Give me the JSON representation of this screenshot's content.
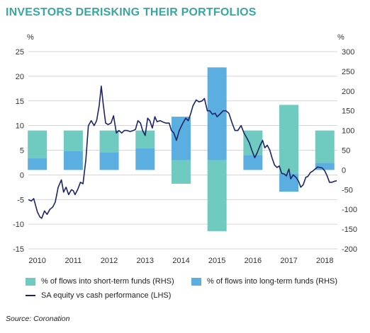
{
  "title": "INVESTORS DERISKING THEIR PORTFOLIOS",
  "source": "Source: Coronation",
  "colors": {
    "title": "#3aa6a0",
    "short": "#6fcbbf",
    "long": "#5aafe0",
    "line": "#1b2466"
  },
  "chart_data": {
    "type": "bar+line",
    "title": "INVESTORS DERISKING THEIR PORTFOLIOS",
    "left_axis": {
      "unit": "%",
      "ylim": [
        -15,
        25
      ],
      "ticks": [
        25,
        20,
        15,
        10,
        5,
        0,
        -5,
        -10,
        -15
      ]
    },
    "right_axis": {
      "unit": "%",
      "ylim": [
        -200,
        300
      ],
      "ticks": [
        300,
        250,
        200,
        150,
        100,
        50,
        0,
        -50,
        -100,
        -150,
        -200
      ]
    },
    "x_ticks": [
      "2010",
      "2011",
      "2012",
      "2013",
      "2014",
      "2015",
      "2016",
      "2017",
      "2018"
    ],
    "grid": "horizontal",
    "series": [
      {
        "name": "% of flows into short-term funds (RHS)",
        "axis": "right",
        "kind": "bar",
        "values": [
          {
            "year": 2010,
            "value": 100,
            "base": 30
          },
          {
            "year": 2011,
            "value": 100,
            "base": 48
          },
          {
            "year": 2012,
            "value": 100,
            "base": 45
          },
          {
            "year": 2013,
            "value": 100,
            "base": 55
          },
          {
            "year": 2014,
            "value": -35,
            "base": 25
          },
          {
            "year": 2015,
            "value": -155,
            "base": 25
          },
          {
            "year": 2016,
            "value": 100,
            "base": 38
          },
          {
            "year": 2017,
            "value": 165,
            "base": -10
          },
          {
            "year": 2018,
            "value": 100,
            "base": 18
          }
        ]
      },
      {
        "name": "% of flows into long-term funds (RHS)",
        "axis": "right",
        "kind": "bar",
        "values": [
          {
            "year": 2010,
            "value": 0,
            "base": 30
          },
          {
            "year": 2011,
            "value": 0,
            "base": 48
          },
          {
            "year": 2012,
            "value": 0,
            "base": 45
          },
          {
            "year": 2013,
            "value": 0,
            "base": 55
          },
          {
            "year": 2014,
            "value": 135,
            "base": 25
          },
          {
            "year": 2015,
            "value": 260,
            "base": 25
          },
          {
            "year": 2016,
            "value": 0,
            "base": 38
          },
          {
            "year": 2017,
            "value": -55,
            "base": -10
          },
          {
            "year": 2018,
            "value": 0,
            "base": 18
          }
        ]
      },
      {
        "name": "SA equity vs cash performance (LHS)",
        "axis": "left",
        "kind": "line",
        "points": [
          [
            2009.75,
            -5
          ],
          [
            2009.83,
            -5.3
          ],
          [
            2009.9,
            -4.8
          ],
          [
            2010.0,
            -7.5
          ],
          [
            2010.07,
            -8.5
          ],
          [
            2010.12,
            -8.8
          ],
          [
            2010.2,
            -7.3
          ],
          [
            2010.27,
            -8
          ],
          [
            2010.35,
            -7
          ],
          [
            2010.43,
            -6.5
          ],
          [
            2010.5,
            -5.5
          ],
          [
            2010.58,
            -2.5
          ],
          [
            2010.67,
            -1
          ],
          [
            2010.73,
            -3.5
          ],
          [
            2010.8,
            -2.5
          ],
          [
            2010.87,
            -4
          ],
          [
            2010.95,
            -3
          ],
          [
            2011.0,
            -3.2
          ],
          [
            2011.05,
            -4
          ],
          [
            2011.12,
            -3
          ],
          [
            2011.2,
            -1.5
          ],
          [
            2011.27,
            -1.8
          ],
          [
            2011.35,
            3
          ],
          [
            2011.42,
            10
          ],
          [
            2011.5,
            11
          ],
          [
            2011.58,
            10
          ],
          [
            2011.65,
            11
          ],
          [
            2011.72,
            14
          ],
          [
            2011.78,
            18
          ],
          [
            2011.83,
            14.5
          ],
          [
            2011.9,
            10.5
          ],
          [
            2011.97,
            10.2
          ],
          [
            2012.05,
            10.5
          ],
          [
            2012.12,
            12
          ],
          [
            2012.2,
            8.5
          ],
          [
            2012.27,
            9
          ],
          [
            2012.35,
            8.5
          ],
          [
            2012.42,
            9
          ],
          [
            2012.5,
            9
          ],
          [
            2012.58,
            8.8
          ],
          [
            2012.67,
            9
          ],
          [
            2012.73,
            9.2
          ],
          [
            2012.8,
            11
          ],
          [
            2012.87,
            10.5
          ],
          [
            2012.93,
            9
          ],
          [
            2013.0,
            8
          ],
          [
            2013.07,
            11.5
          ],
          [
            2013.13,
            11
          ],
          [
            2013.2,
            9.5
          ],
          [
            2013.27,
            11.8
          ],
          [
            2013.33,
            10.8
          ],
          [
            2013.42,
            11
          ],
          [
            2013.5,
            10.7
          ],
          [
            2013.58,
            10.5
          ],
          [
            2013.67,
            10.5
          ],
          [
            2013.73,
            9
          ],
          [
            2013.8,
            8.5
          ],
          [
            2013.87,
            7
          ],
          [
            2013.95,
            9
          ],
          [
            2014.05,
            10.5
          ],
          [
            2014.13,
            11.5
          ],
          [
            2014.2,
            11
          ],
          [
            2014.27,
            12.5
          ],
          [
            2014.33,
            14
          ],
          [
            2014.42,
            15.2
          ],
          [
            2014.5,
            14.8
          ],
          [
            2014.58,
            15
          ],
          [
            2014.65,
            15.5
          ],
          [
            2014.73,
            13
          ],
          [
            2014.8,
            13
          ],
          [
            2014.87,
            12.3
          ],
          [
            2014.95,
            12.5
          ],
          [
            2015.0,
            11.8
          ],
          [
            2015.08,
            12.3
          ],
          [
            2015.17,
            13
          ],
          [
            2015.25,
            13
          ],
          [
            2015.33,
            12.5
          ],
          [
            2015.42,
            10.5
          ],
          [
            2015.5,
            9
          ],
          [
            2015.58,
            9
          ],
          [
            2015.67,
            10
          ],
          [
            2015.75,
            8.5
          ],
          [
            2015.83,
            7.5
          ],
          [
            2015.9,
            6.5
          ],
          [
            2015.97,
            5
          ],
          [
            2016.05,
            3.5
          ],
          [
            2016.12,
            4.5
          ],
          [
            2016.2,
            6
          ],
          [
            2016.27,
            7
          ],
          [
            2016.33,
            5.5
          ],
          [
            2016.4,
            6
          ],
          [
            2016.47,
            5
          ],
          [
            2016.53,
            3.5
          ],
          [
            2016.6,
            2
          ],
          [
            2016.67,
            1.5
          ],
          [
            2016.73,
            1.8
          ],
          [
            2016.8,
            0.3
          ],
          [
            2016.87,
            0.2
          ],
          [
            2016.93,
            -0.2
          ],
          [
            2017.0,
            1.2
          ],
          [
            2017.05,
            -0.8
          ],
          [
            2017.12,
            0
          ],
          [
            2017.2,
            -0.5
          ],
          [
            2017.27,
            -1.3
          ],
          [
            2017.33,
            -2.5
          ],
          [
            2017.4,
            -2
          ],
          [
            2017.47,
            -0.5
          ],
          [
            2017.53,
            -0.3
          ],
          [
            2017.6,
            0.5
          ],
          [
            2017.67,
            0.8
          ],
          [
            2017.73,
            1.2
          ],
          [
            2017.8,
            1.6
          ],
          [
            2017.87,
            1.5
          ],
          [
            2017.93,
            1.4
          ],
          [
            2018.0,
            0.8
          ],
          [
            2018.07,
            -0.3
          ],
          [
            2018.13,
            -1.5
          ],
          [
            2018.2,
            -1.5
          ],
          [
            2018.27,
            -1.3
          ],
          [
            2018.33,
            -1.2
          ]
        ]
      }
    ]
  },
  "legend": [
    {
      "label": "% of flows into short-term funds (RHS)",
      "kind": "swatch",
      "color": "short"
    },
    {
      "label": "% of flows into long-term funds (RHS)",
      "kind": "swatch",
      "color": "long"
    },
    {
      "label": "SA equity vs cash performance (LHS)",
      "kind": "line",
      "color": "line"
    }
  ]
}
